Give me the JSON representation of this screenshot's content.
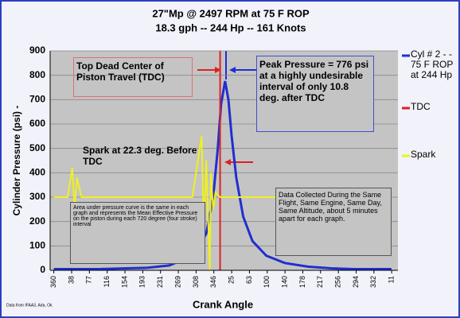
{
  "chart_data": {
    "type": "line",
    "title": "27\"Mp @ 2497 RPM  at 75 F  ROP",
    "subtitle": "18.3 gph  --  244 Hp  -- 161 Knots",
    "x_label": "Crank Angle",
    "y_label": "Cylinder Pressure (psi) -",
    "source": "Data from IFAA3, Ada, Ok",
    "legend": "right",
    "grid": true,
    "xlim": [
      -8,
      745
    ],
    "ylim": [
      0,
      900
    ],
    "yticks": [
      0,
      100,
      200,
      300,
      400,
      500,
      600,
      700,
      800,
      900
    ],
    "xticks": [
      {
        "value": 0,
        "label": "360"
      },
      {
        "value": 38.5,
        "label": "38"
      },
      {
        "value": 77,
        "label": "77"
      },
      {
        "value": 115.5,
        "label": "116"
      },
      {
        "value": 154,
        "label": "154"
      },
      {
        "value": 192.5,
        "label": "193"
      },
      {
        "value": 231,
        "label": "231"
      },
      {
        "value": 269.5,
        "label": "269"
      },
      {
        "value": 308,
        "label": "308"
      },
      {
        "value": 346.5,
        "label": "346"
      },
      {
        "value": 385,
        "label": "25"
      },
      {
        "value": 423.5,
        "label": "63"
      },
      {
        "value": 462,
        "label": "100"
      },
      {
        "value": 500.5,
        "label": "140"
      },
      {
        "value": 539,
        "label": "178"
      },
      {
        "value": 577.5,
        "label": "217"
      },
      {
        "value": 616,
        "label": "256"
      },
      {
        "value": 654.5,
        "label": "294"
      },
      {
        "value": 693,
        "label": "332"
      },
      {
        "value": 731.5,
        "label": "11"
      }
    ],
    "series": [
      {
        "name": "Cyl # 2 - - 75 F ROP at 244 Hp",
        "color": "#1f2fd0",
        "x": [
          0,
          100,
          200,
          250,
          300,
          330,
          345,
          355,
          362,
          370.8,
          378,
          385,
          395,
          410,
          430,
          460,
          500,
          550,
          600,
          650,
          731
        ],
        "values": [
          5,
          5,
          10,
          20,
          60,
          150,
          300,
          500,
          680,
          776,
          700,
          550,
          380,
          220,
          120,
          60,
          30,
          15,
          8,
          5,
          5
        ]
      },
      {
        "name": "TDC",
        "color": "#e02020",
        "x": [
          360,
          360
        ],
        "values": [
          0,
          900
        ]
      },
      {
        "name": "Spark",
        "color": "#f0f020",
        "x": [
          0,
          30,
          40,
          45,
          50,
          60,
          100,
          300,
          320,
          325,
          330,
          337.7,
          340,
          345,
          350,
          360,
          400,
          500,
          731
        ],
        "values": [
          300,
          300,
          420,
          250,
          380,
          300,
          300,
          300,
          550,
          150,
          450,
          0,
          400,
          250,
          320,
          300,
          300,
          300,
          300
        ]
      }
    ],
    "annotations": [
      "Top Dead Center of Piston Travel  (TDC)",
      "Peak Pressure = 776 psi at  a highly undesirable interval of only  10.8 deg.  after TDC",
      "Spark at 22.3 deg. Before TDC",
      "Area under pressure curve is the same in each graph and represents the Mean Effective Pressure on the piston during each 720 degree (four stroke) interval",
      "Data Collected During the Same Flight, Same Engine, Same Day, Same Altitude, about 5 minutes apart  for each graph."
    ]
  }
}
